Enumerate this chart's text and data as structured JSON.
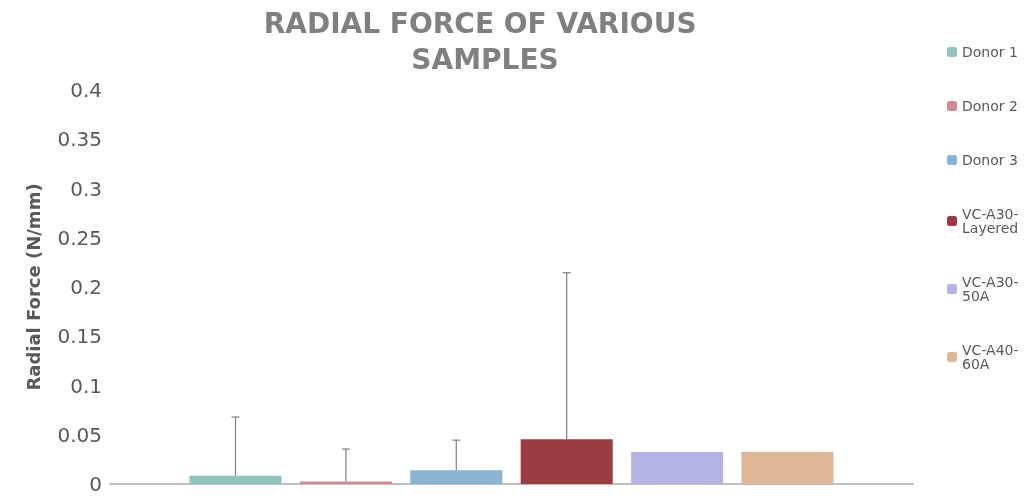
{
  "chart_data": {
    "type": "bar",
    "title": "RADIAL FORCE OF VARIOUS SAMPLES",
    "ylabel": "Radial Force (N/mm)",
    "categories": [
      null
    ],
    "series": [
      {
        "name": "Donor 1",
        "color": "#8fc4bc",
        "values": [
          0.0085
        ],
        "errors": [
          [
            0.0085,
            0.068
          ]
        ]
      },
      {
        "name": "Donor 2",
        "color": "#d48a8e",
        "values": [
          0.0025
        ],
        "errors": [
          [
            0.0025,
            0.0355
          ]
        ]
      },
      {
        "name": "Donor 3",
        "color": "#8ab4d4",
        "values": [
          0.014
        ],
        "errors": [
          [
            0.014,
            0.0445
          ]
        ]
      },
      {
        "name": "VC-A30- Layered",
        "color": "#9c3a42",
        "values": [
          0.0455
        ],
        "errors": [
          [
            0.0455,
            0.2145
          ]
        ]
      },
      {
        "name": "VC-A30- 50A",
        "color": "#b4b4e4",
        "values": [
          0.0325
        ]
      },
      {
        "name": "VC-A40- 60A",
        "color": "#e0b898",
        "values": [
          0.0325
        ]
      }
    ],
    "ylim": [
      0,
      0.4
    ],
    "yticks": [
      0,
      0.05,
      0.1,
      0.15,
      0.2,
      0.25,
      0.3,
      0.35,
      0.4
    ],
    "grid": false,
    "legend": "right"
  }
}
